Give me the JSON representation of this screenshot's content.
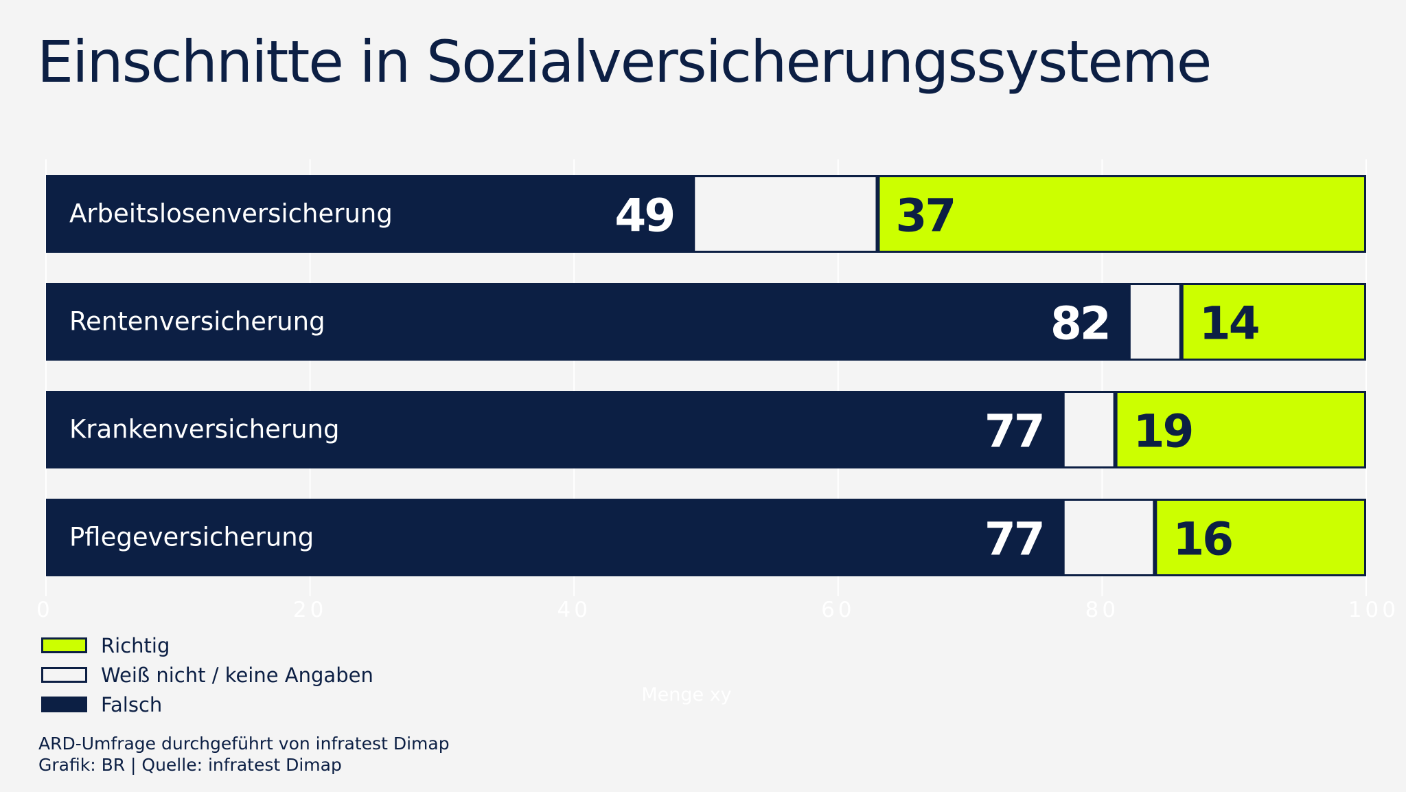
{
  "title": "Einschnitte in Sozialversicherungssysteme",
  "colors": {
    "background": "#f4f4f4",
    "falsch": "#0c1f44",
    "weiss_nicht": "#f4f4f4",
    "richtig": "#ccff00",
    "text_dark": "#0c1f44",
    "text_light": "#ffffff",
    "axis_faint": "#ffffff"
  },
  "chart_data": {
    "type": "bar",
    "orientation": "horizontal",
    "stacked": true,
    "title": "Einschnitte in Sozialversicherungssysteme",
    "categories": [
      "Arbeitslosenversicherung",
      "Rentenversicherung",
      "Krankenversicherung",
      "Pflegeversicherung"
    ],
    "series": [
      {
        "name": "Falsch",
        "values": [
          49,
          82,
          77,
          77
        ],
        "color": "#0c1f44"
      },
      {
        "name": "Weiß nicht / keine Angaben",
        "values": [
          14,
          4,
          4,
          7
        ],
        "color": "#f4f4f4"
      },
      {
        "name": "Richtig",
        "values": [
          37,
          14,
          19,
          16
        ],
        "color": "#ccff00"
      }
    ],
    "xlim": [
      0,
      100
    ],
    "xticks": [
      "0",
      "20",
      "40",
      "60",
      "80",
      "100"
    ],
    "xlabel": "Menge xy",
    "grid": true,
    "legend_position": "bottom-left"
  },
  "legend": {
    "items": [
      {
        "label": "Richtig",
        "color": "#ccff00"
      },
      {
        "label": "Weiß nicht / keine Angaben",
        "color": "#f4f4f4"
      },
      {
        "label": "Falsch",
        "color": "#0c1f44"
      }
    ]
  },
  "footer": {
    "line1": "ARD-Umfrage durchgeführt von infratest Dimap",
    "line2": "Grafik: BR | Quelle: infratest Dimap"
  }
}
